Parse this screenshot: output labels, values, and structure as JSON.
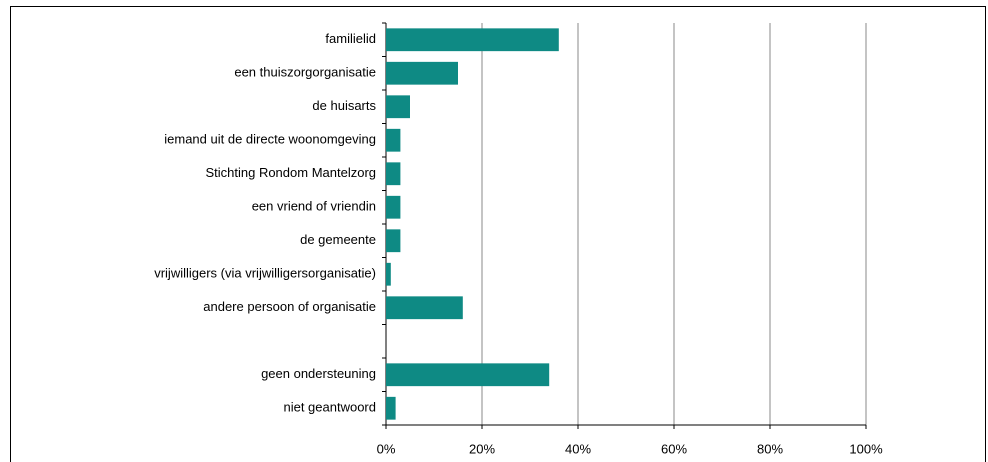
{
  "chart_data": {
    "type": "barh",
    "categories": [
      "familielid",
      "een thuiszorgorganisatie",
      "de huisarts",
      "iemand uit de directe woonomgeving",
      "Stichting Rondom Mantelzorg",
      "een vriend of vriendin",
      "de gemeente",
      "vrijwilligers (via vrijwilligersorganisatie)",
      "andere persoon of organisatie",
      null,
      "geen ondersteuning",
      "niet geantwoord"
    ],
    "values": [
      36,
      15,
      5,
      3,
      3,
      3,
      3,
      1,
      16,
      null,
      34,
      2
    ],
    "color": "#0e8a84",
    "xlim": [
      0,
      100
    ],
    "xticks": [
      {
        "value": 0,
        "label": "0%"
      },
      {
        "value": 20,
        "label": "20%"
      },
      {
        "value": 40,
        "label": "40%"
      },
      {
        "value": 60,
        "label": "60%"
      },
      {
        "value": 80,
        "label": "80%"
      },
      {
        "value": 100,
        "label": "100%"
      }
    ],
    "grid": true
  }
}
